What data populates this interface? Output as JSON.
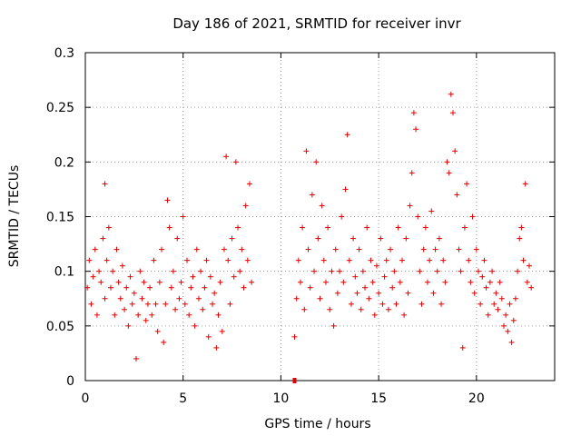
{
  "chart_data": {
    "type": "scatter",
    "title": "Day 186 of 2021, SRMTID for receiver invr",
    "xlabel": "GPS time / hours",
    "ylabel": "SRMTID / TECUs",
    "xlim": [
      0,
      24
    ],
    "ylim": [
      0,
      0.3
    ],
    "x_ticks": [
      0,
      5,
      10,
      15,
      20
    ],
    "y_ticks": [
      0,
      0.05,
      0.1,
      0.15,
      0.2,
      0.25,
      0.3
    ],
    "x_tick_labels": [
      "0",
      "5",
      "10",
      "15",
      "20"
    ],
    "y_tick_labels": [
      "0",
      "0.05",
      "0.1",
      "0.15",
      "0.2",
      "0.25",
      "0.3"
    ],
    "grid": true,
    "marker": "+",
    "color": "#e00000",
    "series": [
      {
        "name": "SRMTID",
        "points": [
          [
            0.1,
            0.085
          ],
          [
            0.2,
            0.11
          ],
          [
            0.3,
            0.07
          ],
          [
            0.4,
            0.095
          ],
          [
            0.5,
            0.12
          ],
          [
            0.6,
            0.06
          ],
          [
            0.7,
            0.1
          ],
          [
            0.8,
            0.09
          ],
          [
            0.9,
            0.13
          ],
          [
            1.0,
            0.18
          ],
          [
            1.0,
            0.075
          ],
          [
            1.1,
            0.11
          ],
          [
            1.2,
            0.14
          ],
          [
            1.3,
            0.085
          ],
          [
            1.4,
            0.1
          ],
          [
            1.5,
            0.06
          ],
          [
            1.6,
            0.12
          ],
          [
            1.7,
            0.09
          ],
          [
            1.8,
            0.075
          ],
          [
            1.9,
            0.105
          ],
          [
            2.0,
            0.065
          ],
          [
            2.1,
            0.085
          ],
          [
            2.2,
            0.05
          ],
          [
            2.3,
            0.095
          ],
          [
            2.4,
            0.07
          ],
          [
            2.5,
            0.08
          ],
          [
            2.6,
            0.02
          ],
          [
            2.7,
            0.06
          ],
          [
            2.8,
            0.1
          ],
          [
            2.9,
            0.075
          ],
          [
            3.0,
            0.09
          ],
          [
            3.1,
            0.055
          ],
          [
            3.2,
            0.07
          ],
          [
            3.3,
            0.085
          ],
          [
            3.4,
            0.06
          ],
          [
            3.5,
            0.11
          ],
          [
            3.6,
            0.07
          ],
          [
            3.7,
            0.045
          ],
          [
            3.8,
            0.09
          ],
          [
            3.9,
            0.12
          ],
          [
            4.0,
            0.035
          ],
          [
            4.1,
            0.07
          ],
          [
            4.2,
            0.165
          ],
          [
            4.3,
            0.14
          ],
          [
            4.4,
            0.085
          ],
          [
            4.5,
            0.1
          ],
          [
            4.6,
            0.065
          ],
          [
            4.7,
            0.13
          ],
          [
            4.8,
            0.075
          ],
          [
            4.9,
            0.09
          ],
          [
            5.0,
            0.15
          ],
          [
            5.1,
            0.07
          ],
          [
            5.2,
            0.11
          ],
          [
            5.3,
            0.06
          ],
          [
            5.4,
            0.085
          ],
          [
            5.5,
            0.095
          ],
          [
            5.6,
            0.05
          ],
          [
            5.7,
            0.12
          ],
          [
            5.8,
            0.075
          ],
          [
            5.9,
            0.1
          ],
          [
            6.0,
            0.065
          ],
          [
            6.1,
            0.085
          ],
          [
            6.2,
            0.11
          ],
          [
            6.3,
            0.04
          ],
          [
            6.4,
            0.095
          ],
          [
            6.5,
            0.07
          ],
          [
            6.6,
            0.08
          ],
          [
            6.7,
            0.03
          ],
          [
            6.8,
            0.06
          ],
          [
            6.9,
            0.09
          ],
          [
            7.0,
            0.045
          ],
          [
            7.1,
            0.12
          ],
          [
            7.2,
            0.205
          ],
          [
            7.3,
            0.11
          ],
          [
            7.4,
            0.07
          ],
          [
            7.5,
            0.13
          ],
          [
            7.6,
            0.095
          ],
          [
            7.7,
            0.2
          ],
          [
            7.8,
            0.14
          ],
          [
            7.9,
            0.1
          ],
          [
            8.0,
            0.12
          ],
          [
            8.1,
            0.085
          ],
          [
            8.2,
            0.16
          ],
          [
            8.3,
            0.11
          ],
          [
            8.4,
            0.18
          ],
          [
            8.5,
            0.09
          ],
          [
            10.7,
            0.04
          ],
          [
            10.8,
            0.075
          ],
          [
            10.9,
            0.11
          ],
          [
            11.0,
            0.09
          ],
          [
            11.1,
            0.14
          ],
          [
            11.2,
            0.065
          ],
          [
            11.3,
            0.21
          ],
          [
            11.4,
            0.12
          ],
          [
            11.5,
            0.085
          ],
          [
            11.6,
            0.17
          ],
          [
            11.7,
            0.1
          ],
          [
            11.8,
            0.2
          ],
          [
            11.9,
            0.13
          ],
          [
            12.0,
            0.075
          ],
          [
            12.1,
            0.16
          ],
          [
            12.2,
            0.11
          ],
          [
            12.3,
            0.09
          ],
          [
            12.4,
            0.14
          ],
          [
            12.5,
            0.065
          ],
          [
            12.6,
            0.1
          ],
          [
            12.7,
            0.05
          ],
          [
            12.8,
            0.12
          ],
          [
            12.9,
            0.08
          ],
          [
            13.0,
            0.1
          ],
          [
            13.1,
            0.15
          ],
          [
            13.2,
            0.09
          ],
          [
            13.3,
            0.175
          ],
          [
            13.4,
            0.225
          ],
          [
            13.5,
            0.11
          ],
          [
            13.6,
            0.07
          ],
          [
            13.7,
            0.13
          ],
          [
            13.8,
            0.095
          ],
          [
            13.9,
            0.08
          ],
          [
            14.0,
            0.12
          ],
          [
            14.1,
            0.065
          ],
          [
            14.2,
            0.1
          ],
          [
            14.3,
            0.085
          ],
          [
            14.4,
            0.14
          ],
          [
            14.5,
            0.075
          ],
          [
            14.6,
            0.11
          ],
          [
            14.7,
            0.09
          ],
          [
            14.8,
            0.06
          ],
          [
            14.9,
            0.105
          ],
          [
            15.0,
            0.08
          ],
          [
            15.1,
            0.13
          ],
          [
            15.2,
            0.07
          ],
          [
            15.3,
            0.095
          ],
          [
            15.4,
            0.11
          ],
          [
            15.5,
            0.065
          ],
          [
            15.6,
            0.12
          ],
          [
            15.7,
            0.085
          ],
          [
            15.8,
            0.1
          ],
          [
            15.9,
            0.07
          ],
          [
            16.0,
            0.14
          ],
          [
            16.1,
            0.09
          ],
          [
            16.2,
            0.11
          ],
          [
            16.3,
            0.06
          ],
          [
            16.4,
            0.13
          ],
          [
            16.5,
            0.08
          ],
          [
            16.6,
            0.16
          ],
          [
            16.7,
            0.19
          ],
          [
            16.8,
            0.245
          ],
          [
            16.9,
            0.23
          ],
          [
            17.0,
            0.15
          ],
          [
            17.1,
            0.1
          ],
          [
            17.2,
            0.07
          ],
          [
            17.3,
            0.12
          ],
          [
            17.4,
            0.14
          ],
          [
            17.5,
            0.09
          ],
          [
            17.6,
            0.11
          ],
          [
            17.7,
            0.155
          ],
          [
            17.8,
            0.08
          ],
          [
            17.9,
            0.12
          ],
          [
            18.0,
            0.1
          ],
          [
            18.1,
            0.13
          ],
          [
            18.2,
            0.07
          ],
          [
            18.3,
            0.11
          ],
          [
            18.4,
            0.09
          ],
          [
            18.5,
            0.2
          ],
          [
            18.6,
            0.19
          ],
          [
            18.7,
            0.262
          ],
          [
            18.8,
            0.245
          ],
          [
            18.9,
            0.21
          ],
          [
            19.0,
            0.17
          ],
          [
            19.1,
            0.12
          ],
          [
            19.2,
            0.1
          ],
          [
            19.3,
            0.03
          ],
          [
            19.4,
            0.14
          ],
          [
            19.5,
            0.18
          ],
          [
            19.6,
            0.11
          ],
          [
            19.7,
            0.09
          ],
          [
            19.8,
            0.15
          ],
          [
            19.9,
            0.08
          ],
          [
            20.0,
            0.12
          ],
          [
            20.1,
            0.1
          ],
          [
            20.2,
            0.07
          ],
          [
            20.3,
            0.095
          ],
          [
            20.4,
            0.11
          ],
          [
            20.5,
            0.085
          ],
          [
            20.6,
            0.06
          ],
          [
            20.7,
            0.09
          ],
          [
            20.8,
            0.1
          ],
          [
            20.9,
            0.07
          ],
          [
            21.0,
            0.08
          ],
          [
            21.1,
            0.065
          ],
          [
            21.2,
            0.09
          ],
          [
            21.3,
            0.075
          ],
          [
            21.4,
            0.05
          ],
          [
            21.5,
            0.06
          ],
          [
            21.6,
            0.045
          ],
          [
            21.7,
            0.07
          ],
          [
            21.8,
            0.035
          ],
          [
            21.9,
            0.055
          ],
          [
            22.0,
            0.075
          ],
          [
            22.1,
            0.1
          ],
          [
            22.2,
            0.13
          ],
          [
            22.3,
            0.14
          ],
          [
            22.4,
            0.11
          ],
          [
            22.5,
            0.18
          ],
          [
            22.6,
            0.09
          ],
          [
            22.7,
            0.105
          ],
          [
            22.8,
            0.085
          ]
        ]
      }
    ],
    "outlier_markers": [
      [
        10.7,
        0.0
      ]
    ]
  }
}
